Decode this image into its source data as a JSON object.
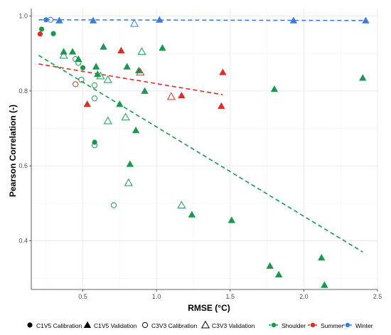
{
  "chart_data": {
    "type": "scatter",
    "title": "",
    "xlabel": "RMSE (°C)",
    "ylabel": "Pearson Correlation (-)",
    "xlim": [
      0.15,
      2.5
    ],
    "ylim": [
      0.27,
      1.02
    ],
    "x_ticks": [
      0.5,
      1.0,
      1.5,
      2.0,
      2.5
    ],
    "x_tick_labels": [
      "0.5",
      "1.0",
      "1.5",
      "2.0",
      "2.5"
    ],
    "y_ticks": [
      0.4,
      0.6,
      0.8,
      1.0
    ],
    "y_tick_labels": [
      "0.4",
      "0.6",
      "0.8",
      "1.0"
    ],
    "grid": true,
    "legend_placement": "bottom",
    "colors": {
      "Shoulder": "#1a9850",
      "Summer": "#d73027",
      "Winter": "#3b7ddd"
    },
    "shape_legend": [
      {
        "shape": "filled-circle",
        "label": "C1V5 Calibration"
      },
      {
        "shape": "filled-triangle",
        "label": "C1V5 Validation"
      },
      {
        "shape": "open-circle",
        "label": "C3V3 Calibration"
      },
      {
        "shape": "open-triangle",
        "label": "C3V3 Validation"
      }
    ],
    "season_legend": [
      "Shoulder",
      "Summer",
      "Winter"
    ],
    "points": [
      {
        "x": 0.22,
        "y": 0.965,
        "shape": "filled-circle",
        "season": "Shoulder"
      },
      {
        "x": 0.3,
        "y": 0.953,
        "shape": "filled-circle",
        "season": "Shoulder"
      },
      {
        "x": 0.5,
        "y": 0.862,
        "shape": "filled-circle",
        "season": "Shoulder"
      },
      {
        "x": 0.58,
        "y": 0.663,
        "shape": "filled-circle",
        "season": "Shoulder"
      },
      {
        "x": 0.21,
        "y": 0.952,
        "shape": "filled-circle",
        "season": "Summer"
      },
      {
        "x": 0.25,
        "y": 0.99,
        "shape": "filled-circle",
        "season": "Winter"
      },
      {
        "x": 0.37,
        "y": 0.905,
        "shape": "filled-triangle",
        "season": "Shoulder"
      },
      {
        "x": 0.43,
        "y": 0.905,
        "shape": "filled-triangle",
        "season": "Shoulder"
      },
      {
        "x": 0.47,
        "y": 0.885,
        "shape": "filled-triangle",
        "season": "Shoulder"
      },
      {
        "x": 0.59,
        "y": 0.865,
        "shape": "filled-triangle",
        "season": "Shoulder"
      },
      {
        "x": 0.6,
        "y": 0.845,
        "shape": "filled-triangle",
        "season": "Shoulder"
      },
      {
        "x": 0.64,
        "y": 0.918,
        "shape": "filled-triangle",
        "season": "Shoulder"
      },
      {
        "x": 0.75,
        "y": 0.765,
        "shape": "filled-triangle",
        "season": "Shoulder"
      },
      {
        "x": 0.8,
        "y": 0.865,
        "shape": "filled-triangle",
        "season": "Shoulder"
      },
      {
        "x": 0.82,
        "y": 0.605,
        "shape": "filled-triangle",
        "season": "Shoulder"
      },
      {
        "x": 0.86,
        "y": 0.695,
        "shape": "filled-triangle",
        "season": "Shoulder"
      },
      {
        "x": 0.88,
        "y": 0.855,
        "shape": "filled-triangle",
        "season": "Shoulder"
      },
      {
        "x": 0.92,
        "y": 0.8,
        "shape": "filled-triangle",
        "season": "Shoulder"
      },
      {
        "x": 1.04,
        "y": 0.915,
        "shape": "filled-triangle",
        "season": "Shoulder"
      },
      {
        "x": 1.24,
        "y": 0.47,
        "shape": "filled-triangle",
        "season": "Shoulder"
      },
      {
        "x": 1.51,
        "y": 0.455,
        "shape": "filled-triangle",
        "season": "Shoulder"
      },
      {
        "x": 1.77,
        "y": 0.333,
        "shape": "filled-triangle",
        "season": "Shoulder"
      },
      {
        "x": 1.8,
        "y": 0.805,
        "shape": "filled-triangle",
        "season": "Shoulder"
      },
      {
        "x": 1.83,
        "y": 0.31,
        "shape": "filled-triangle",
        "season": "Shoulder"
      },
      {
        "x": 2.12,
        "y": 0.355,
        "shape": "filled-triangle",
        "season": "Shoulder"
      },
      {
        "x": 2.14,
        "y": 0.282,
        "shape": "filled-triangle",
        "season": "Shoulder"
      },
      {
        "x": 2.4,
        "y": 0.835,
        "shape": "filled-triangle",
        "season": "Shoulder"
      },
      {
        "x": 0.53,
        "y": 0.765,
        "shape": "filled-triangle",
        "season": "Summer"
      },
      {
        "x": 0.76,
        "y": 0.908,
        "shape": "filled-triangle",
        "season": "Summer"
      },
      {
        "x": 1.17,
        "y": 0.788,
        "shape": "filled-triangle",
        "season": "Summer"
      },
      {
        "x": 1.44,
        "y": 0.76,
        "shape": "filled-triangle",
        "season": "Summer"
      },
      {
        "x": 1.45,
        "y": 0.85,
        "shape": "filled-triangle",
        "season": "Summer"
      },
      {
        "x": 0.34,
        "y": 0.988,
        "shape": "filled-triangle",
        "season": "Winter"
      },
      {
        "x": 0.57,
        "y": 0.988,
        "shape": "filled-triangle",
        "season": "Winter"
      },
      {
        "x": 1.02,
        "y": 0.99,
        "shape": "filled-triangle",
        "season": "Winter"
      },
      {
        "x": 1.93,
        "y": 0.988,
        "shape": "filled-triangle",
        "season": "Winter"
      },
      {
        "x": 2.42,
        "y": 0.988,
        "shape": "filled-triangle",
        "season": "Winter"
      },
      {
        "x": 0.45,
        "y": 0.885,
        "shape": "open-circle",
        "season": "Shoulder"
      },
      {
        "x": 0.47,
        "y": 0.875,
        "shape": "open-circle",
        "season": "Shoulder"
      },
      {
        "x": 0.49,
        "y": 0.83,
        "shape": "open-circle",
        "season": "Shoulder"
      },
      {
        "x": 0.58,
        "y": 0.815,
        "shape": "open-circle",
        "season": "Shoulder"
      },
      {
        "x": 0.58,
        "y": 0.78,
        "shape": "open-circle",
        "season": "Shoulder"
      },
      {
        "x": 0.58,
        "y": 0.655,
        "shape": "open-circle",
        "season": "Shoulder"
      },
      {
        "x": 0.71,
        "y": 0.495,
        "shape": "open-circle",
        "season": "Shoulder"
      },
      {
        "x": 0.45,
        "y": 0.818,
        "shape": "open-circle",
        "season": "Summer"
      },
      {
        "x": 0.28,
        "y": 0.99,
        "shape": "open-circle",
        "season": "Winter"
      },
      {
        "x": 0.37,
        "y": 0.895,
        "shape": "open-triangle",
        "season": "Shoulder"
      },
      {
        "x": 0.62,
        "y": 0.84,
        "shape": "open-triangle",
        "season": "Shoulder"
      },
      {
        "x": 0.67,
        "y": 0.83,
        "shape": "open-triangle",
        "season": "Shoulder"
      },
      {
        "x": 0.67,
        "y": 0.72,
        "shape": "open-triangle",
        "season": "Shoulder"
      },
      {
        "x": 0.79,
        "y": 0.73,
        "shape": "open-triangle",
        "season": "Shoulder"
      },
      {
        "x": 0.81,
        "y": 0.555,
        "shape": "open-triangle",
        "season": "Shoulder"
      },
      {
        "x": 0.9,
        "y": 0.905,
        "shape": "open-triangle",
        "season": "Shoulder"
      },
      {
        "x": 1.17,
        "y": 0.495,
        "shape": "open-triangle",
        "season": "Shoulder"
      },
      {
        "x": 0.89,
        "y": 0.85,
        "shape": "open-triangle",
        "season": "Summer"
      },
      {
        "x": 1.1,
        "y": 0.785,
        "shape": "open-triangle",
        "season": "Summer"
      },
      {
        "x": 0.85,
        "y": 0.98,
        "shape": "open-triangle",
        "season": "Winter"
      }
    ],
    "trend_lines": [
      {
        "season": "Shoulder",
        "x": [
          0.2,
          2.4
        ],
        "y": [
          0.895,
          0.37
        ]
      },
      {
        "season": "Summer",
        "x": [
          0.2,
          1.45
        ],
        "y": [
          0.872,
          0.79
        ]
      },
      {
        "season": "Winter",
        "x": [
          0.2,
          2.43
        ],
        "y": [
          0.99,
          0.988
        ]
      }
    ]
  }
}
